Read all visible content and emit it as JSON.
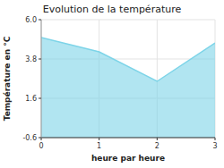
{
  "chart_data": {
    "type": "area",
    "title": "Evolution de la température",
    "xlabel": "heure par heure",
    "ylabel": "Température en °C",
    "x": [
      0,
      1,
      2,
      3
    ],
    "values": [
      5.0,
      4.2,
      2.55,
      4.7
    ],
    "color": "#7dd4e8",
    "xlim": [
      0,
      3
    ],
    "ylim": [
      -0.6,
      6.0
    ],
    "xticks": [
      0,
      1,
      2,
      3
    ],
    "yticks": [
      -0.6,
      1.6,
      3.8,
      {
        "value": 6.0,
        "label": "6.0"
      }
    ],
    "grid": true
  }
}
